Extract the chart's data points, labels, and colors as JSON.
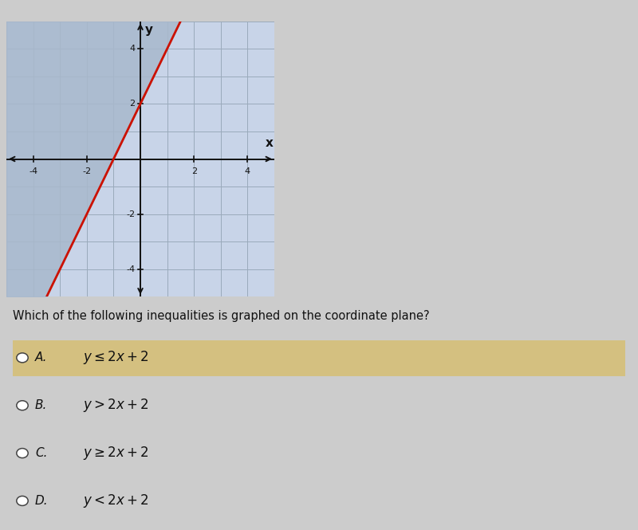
{
  "graph_bg": "#c8d4e8",
  "page_bg": "#cccccc",
  "answer_highlight_bg": "#d4c080",
  "grid_color": "#9aaabb",
  "axis_color": "#111111",
  "line_color": "#cc1100",
  "shade_color": "#a8b8cc",
  "xmin": -5,
  "xmax": 5,
  "ymin": -5,
  "ymax": 5,
  "xticks": [
    -4,
    -2,
    2,
    4
  ],
  "yticks": [
    -4,
    -2,
    2,
    4
  ],
  "slope": 2,
  "intercept": 2,
  "question": "Which of the following inequalities is graphed on the coordinate plane?",
  "options": [
    {
      "label": "A.",
      "text": "$y \\leq 2x + 2$",
      "highlighted": true
    },
    {
      "label": "B.",
      "text": "$y > 2x + 2$",
      "highlighted": false
    },
    {
      "label": "C.",
      "text": "$y \\geq 2x + 2$",
      "highlighted": false
    },
    {
      "label": "D.",
      "text": "$y < 2x + 2$",
      "highlighted": false
    }
  ]
}
